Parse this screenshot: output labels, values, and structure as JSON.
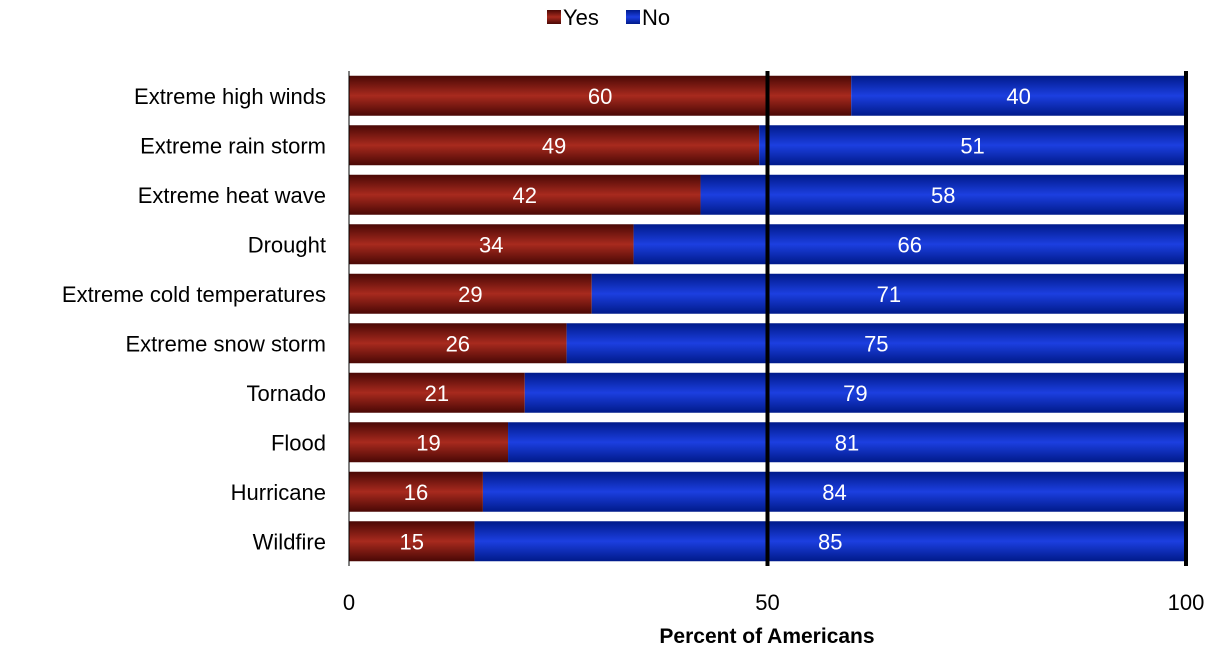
{
  "chart_data": {
    "type": "bar",
    "orientation": "horizontal",
    "stacked": true,
    "categories": [
      "Extreme high winds",
      "Extreme rain storm",
      "Extreme heat wave",
      "Drought",
      "Extreme cold temperatures",
      "Extreme snow storm",
      "Tornado",
      "Flood",
      "Hurricane",
      "Wildfire"
    ],
    "series": [
      {
        "name": "Yes",
        "values": [
          60,
          49,
          42,
          34,
          29,
          26,
          21,
          19,
          16,
          15
        ],
        "color": "#8B1A0E"
      },
      {
        "name": "No",
        "values": [
          40,
          51,
          58,
          66,
          71,
          75,
          79,
          81,
          84,
          85
        ],
        "color": "#1030C8"
      }
    ],
    "xlabel": "Percent of Americans",
    "xlim": [
      0,
      100
    ],
    "xticks": [
      "0",
      "50",
      "100"
    ],
    "gridlines": [
      50,
      100
    ],
    "legend_position": "top-center",
    "title": ""
  }
}
